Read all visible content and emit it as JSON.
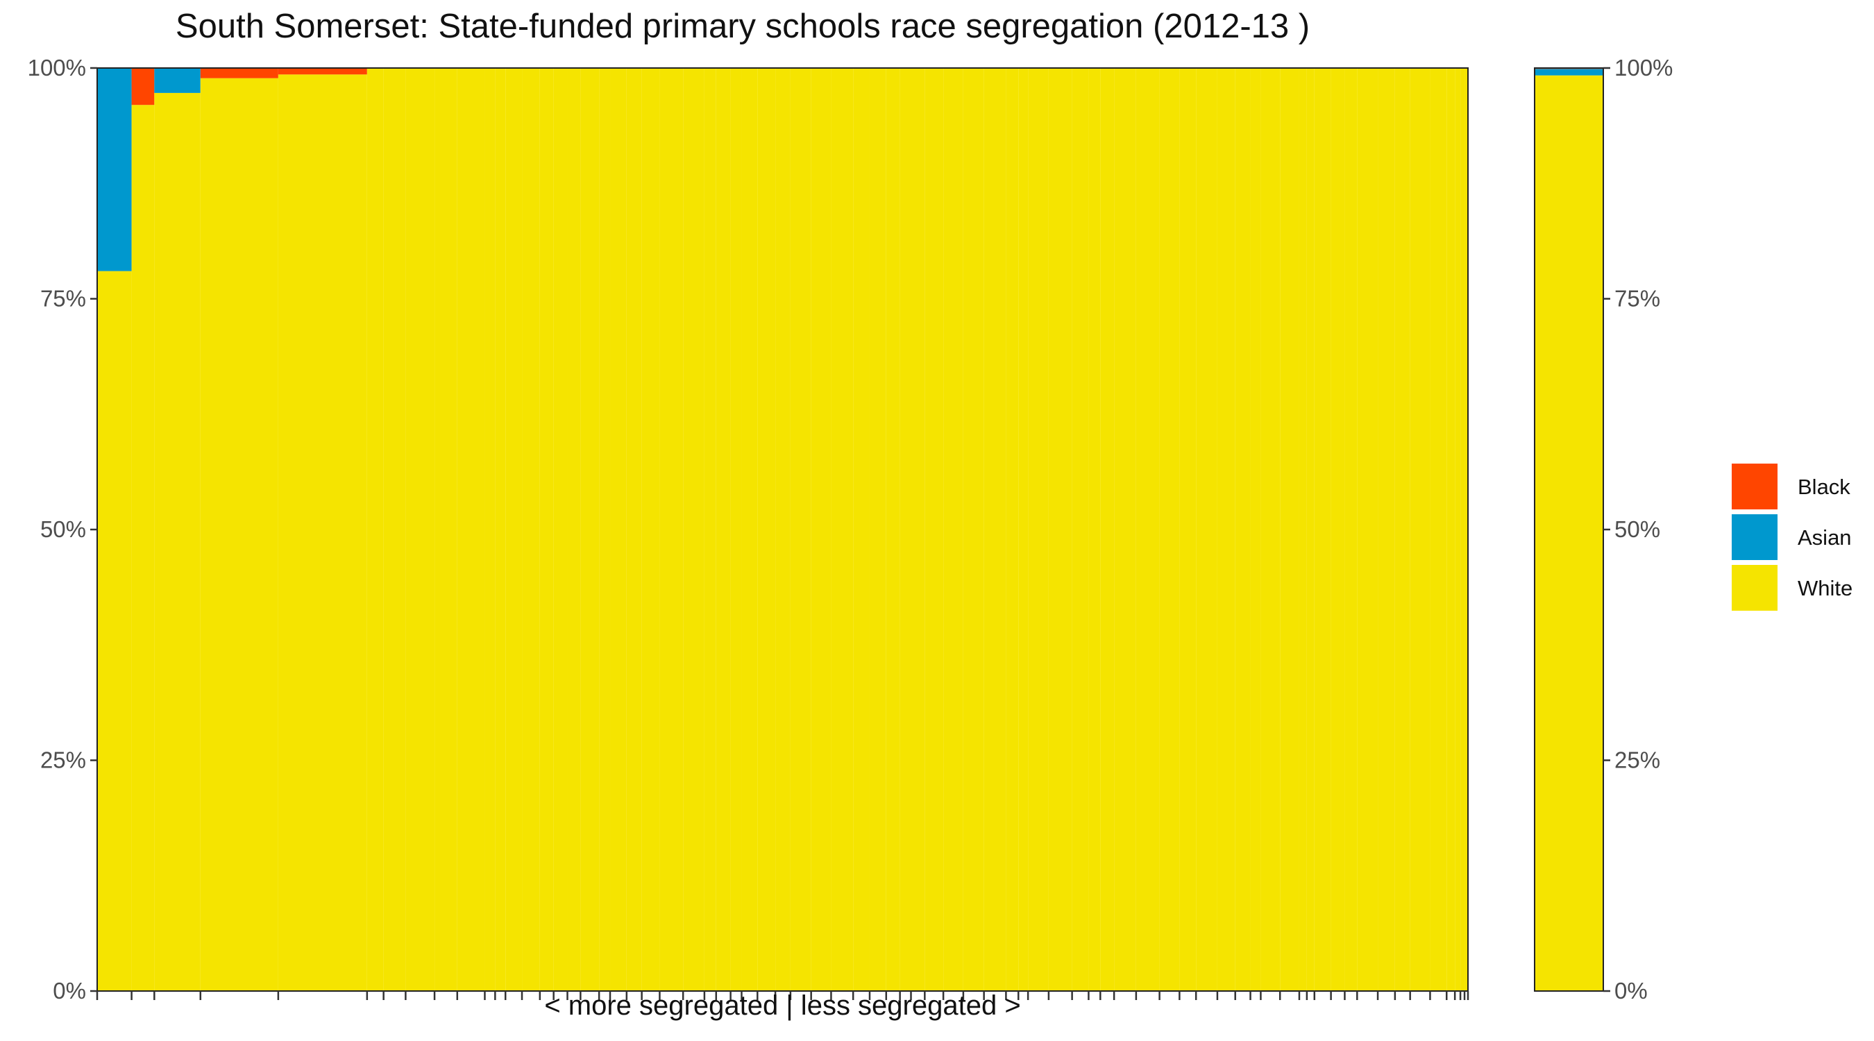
{
  "colors": {
    "Black": "#FF4500",
    "Asian": "#0098CE",
    "White": "#F5E400"
  },
  "chart_data": {
    "type": "bar",
    "title": "South Somerset: State-funded primary schools race segregation (2012-13 )",
    "xlabel": "< more segregated | less segregated >",
    "ylabel": "",
    "ylim": [
      0,
      1
    ],
    "y_ticks": [
      "0%",
      "25%",
      "50%",
      "75%",
      "100%"
    ],
    "y_tick_values": [
      0,
      0.25,
      0.5,
      0.75,
      1.0
    ],
    "stacking": "percent",
    "x_axis": "cumulative pupils, schools ordered from most to least segregated (variable-width bars)",
    "series_order": [
      "White",
      "Asian",
      "Black"
    ],
    "school_widths": [
      50,
      33,
      67,
      113,
      129,
      24,
      32,
      42,
      33,
      40,
      15,
      15,
      24,
      26,
      20,
      20,
      19,
      27,
      16,
      24,
      22,
      26,
      34,
      31,
      17,
      21,
      16,
      23,
      26,
      22,
      30,
      29,
      32,
      24,
      24,
      20,
      16,
      20,
      27,
      29,
      30,
      32,
      18,
      14,
      30,
      34,
      24,
      17,
      20,
      32,
      34,
      29,
      24,
      31,
      26,
      22,
      15,
      28,
      28,
      11,
      11,
      24,
      20,
      18,
      30,
      25,
      22,
      29,
      24,
      12,
      8,
      6,
      5
    ],
    "schools": [
      {
        "White": 0.78,
        "Asian": 0.22,
        "Black": 0.0
      },
      {
        "White": 0.96,
        "Asian": 0.0,
        "Black": 0.04
      },
      {
        "White": 0.973,
        "Asian": 0.027,
        "Black": 0.0
      },
      {
        "White": 0.989,
        "Asian": 0.0,
        "Black": 0.011
      },
      {
        "White": 0.993,
        "Asian": 0.0,
        "Black": 0.007
      }
    ],
    "remaining_schools": {
      "White": 1.0,
      "Asian": 0.0,
      "Black": 0.0
    },
    "summary_bar": {
      "White": 0.992,
      "Asian": 0.007,
      "Black": 0.001
    },
    "legend": {
      "position": "right",
      "entries": [
        "Black",
        "Asian",
        "White"
      ]
    },
    "grid": false
  }
}
